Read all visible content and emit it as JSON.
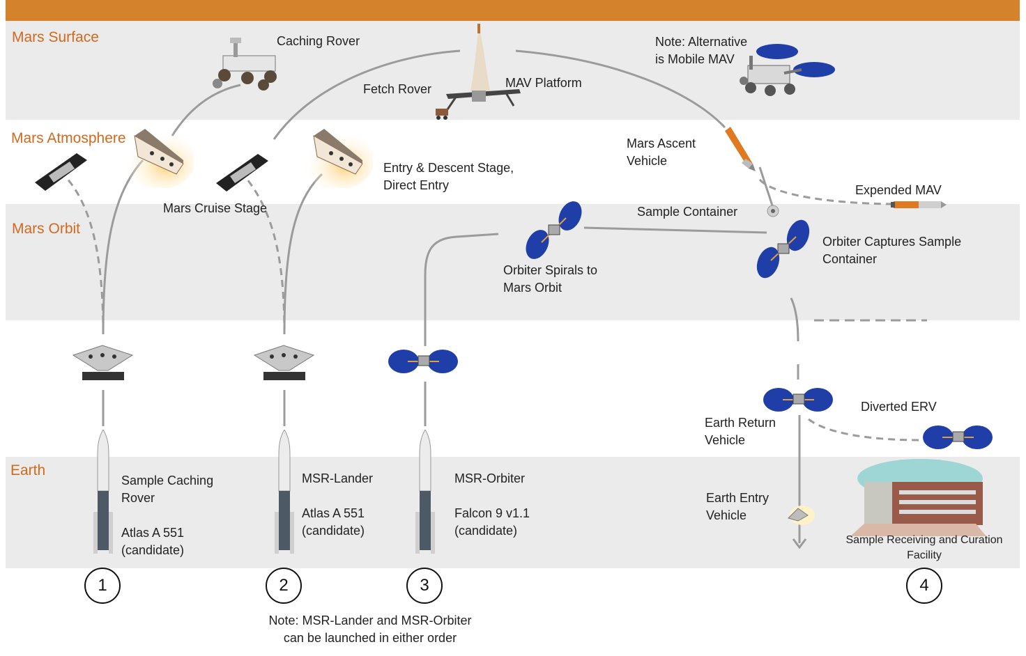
{
  "zones": {
    "mars_surface": "Mars Surface",
    "mars_atmosphere": "Mars Atmosphere",
    "mars_orbit": "Mars Orbit",
    "earth": "Earth"
  },
  "labels": {
    "caching_rover": "Caching Rover",
    "fetch_rover": "Fetch Rover",
    "mav_platform": "MAV Platform",
    "alt_mav_note": "Note: Alternative\nis Mobile MAV",
    "mars_ascent_vehicle": "Mars Ascent\nVehicle",
    "expended_mav": "Expended MAV",
    "entry_descent": "Entry & Descent Stage,\nDirect Entry",
    "mars_cruise_stage": "Mars Cruise Stage",
    "sample_container": "Sample Container",
    "orbiter_captures": "Orbiter Captures Sample\nContainer",
    "orbiter_spirals": "Orbiter Spirals to\nMars Orbit",
    "earth_return_vehicle": "Earth Return\nVehicle",
    "diverted_erv": "Diverted ERV",
    "earth_entry_vehicle": "Earth Entry\nVehicle",
    "sample_facility": "Sample Receiving and Curation\nFacility",
    "launch1": "Sample Caching\nRover\n\nAtlas A 551\n(candidate)",
    "launch2": "MSR-Lander\n\nAtlas A 551\n(candidate)",
    "launch3": "MSR-Orbiter\n\nFalcon 9 v1.1\n(candidate)",
    "order_note": "Note: MSR-Lander and MSR-Orbiter\ncan be launched in either order"
  },
  "steps": [
    "1",
    "2",
    "3",
    "4"
  ],
  "icons": [
    "rover-icon",
    "mav-icon",
    "mobile-mav-icon",
    "cruise-stage-icon",
    "aeroshell-icon",
    "orbiter-icon",
    "sample-container-icon",
    "rocket-icon",
    "building-icon",
    "earth-entry-capsule-icon"
  ],
  "colors": {
    "header_bar": "#d5822d",
    "band": "#ebebeb",
    "zone_text": "#d2691e",
    "path": "#9b9b9b",
    "panel_blue": "#1f3ea8"
  }
}
